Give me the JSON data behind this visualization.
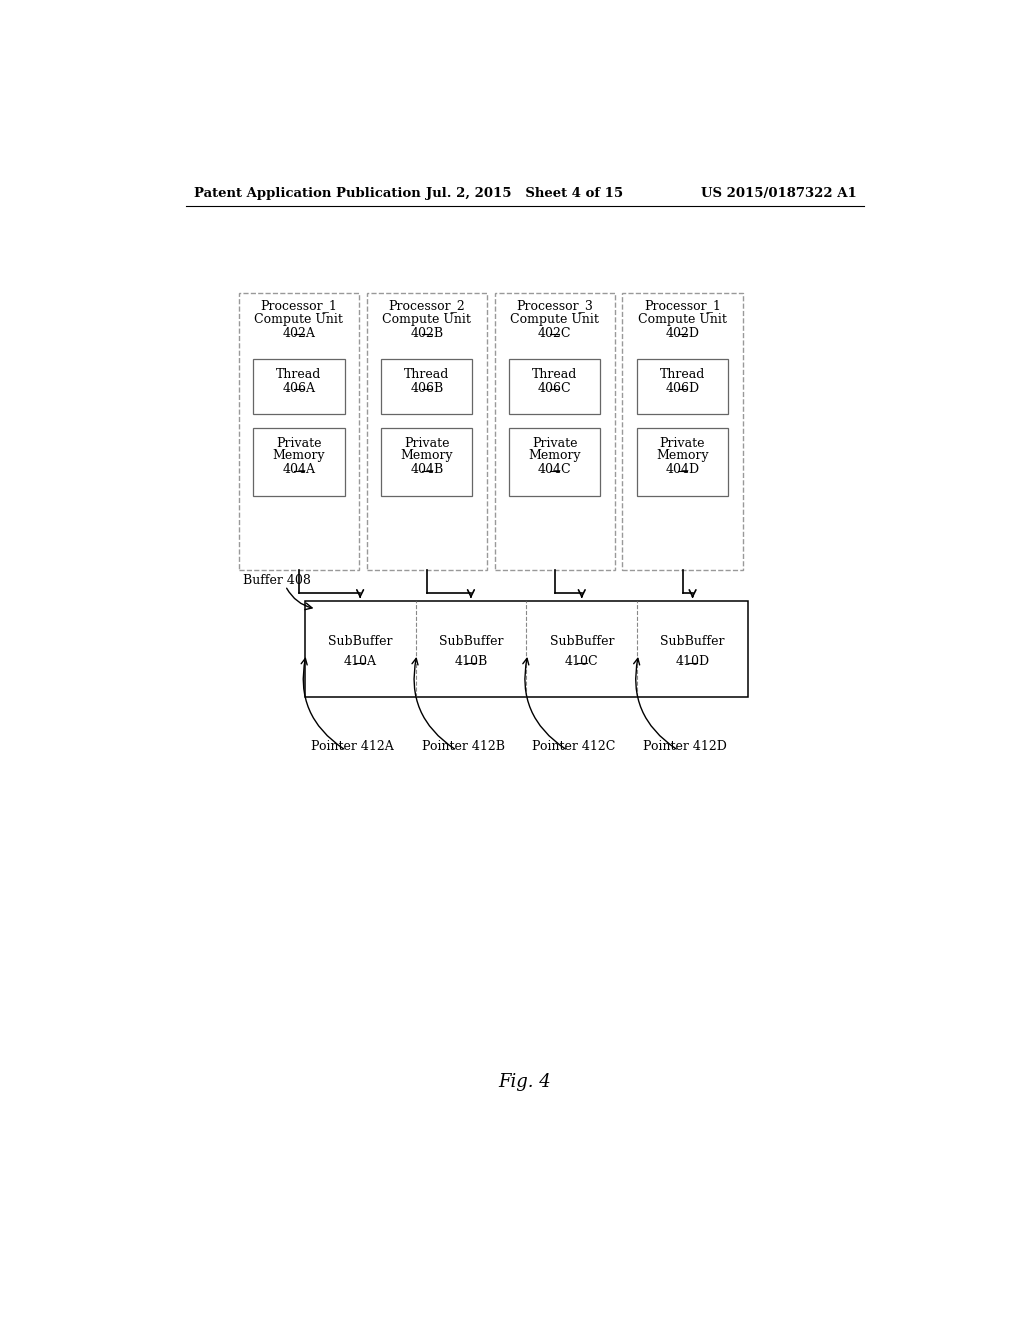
{
  "header_left": "Patent Application Publication",
  "header_mid": "Jul. 2, 2015   Sheet 4 of 15",
  "header_right": "US 2015/0187322 A1",
  "fig_label": "Fig. 4",
  "processors": [
    {
      "title1": "Processor_1",
      "title2": "Compute Unit",
      "id": "402A",
      "thread_id": "406A",
      "mem_id": "404A"
    },
    {
      "title1": "Processor_2",
      "title2": "Compute Unit",
      "id": "402B",
      "thread_id": "406B",
      "mem_id": "404B"
    },
    {
      "title1": "Processor_3",
      "title2": "Compute Unit",
      "id": "402C",
      "thread_id": "406C",
      "mem_id": "404C"
    },
    {
      "title1": "Processor_1",
      "title2": "Compute Unit",
      "id": "402D",
      "thread_id": "406D",
      "mem_id": "404D"
    }
  ],
  "subbuffers": [
    {
      "label": "SubBuffer",
      "id": "410A"
    },
    {
      "label": "SubBuffer",
      "id": "410B"
    },
    {
      "label": "SubBuffer",
      "id": "410C"
    },
    {
      "label": "SubBuffer",
      "id": "410D"
    }
  ],
  "pointers": [
    "Pointer 412A",
    "Pointer 412B",
    "Pointer 412C",
    "Pointer 412D"
  ],
  "buffer_label": "Buffer 408",
  "bg_color": "#ffffff"
}
